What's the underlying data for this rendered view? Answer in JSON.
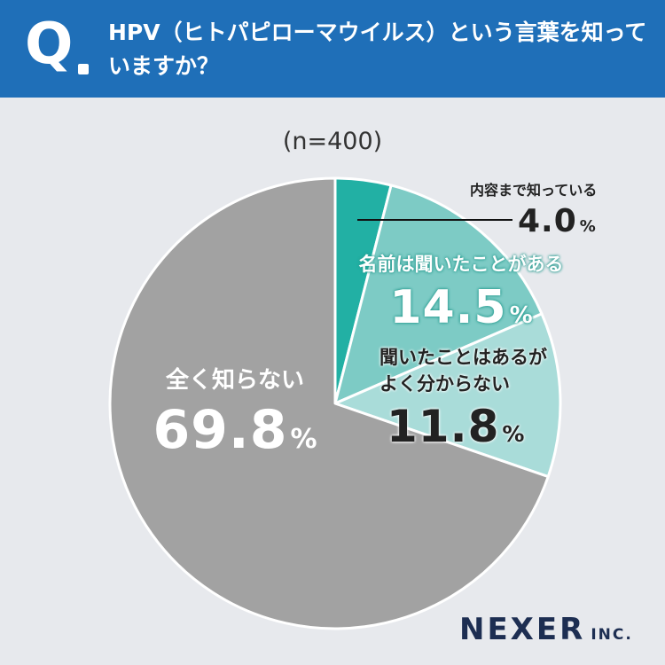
{
  "header": {
    "badge": "Q",
    "question": "HPV（ヒトパピローマウイルス）という言葉を知っていますか？"
  },
  "sample": "(n=400)",
  "brand": {
    "name": "NEXER",
    "suffix": "INC."
  },
  "colors": {
    "header_bg": "#1f6fb8",
    "page_bg": "#e7e9ed",
    "slice_know": "#22b0a4",
    "slice_heard": "#7dcbc5",
    "slice_vague": "#a9dcd9",
    "slice_unknown": "#a2a2a2",
    "brand": "#1d2e52"
  },
  "chart_data": {
    "type": "pie",
    "start": "12 o'clock",
    "direction": "clockwise",
    "unit": "%",
    "slices": [
      {
        "label": "内容まで知っている",
        "value": 4.0,
        "display": "4.0",
        "color": "#22b0a4"
      },
      {
        "label": "名前は聞いたことがある",
        "value": 14.5,
        "display": "14.5",
        "color": "#7dcbc5"
      },
      {
        "label": "聞いたことはあるがよく分からない",
        "label_lines": [
          "聞いたことはあるが",
          "よく分からない"
        ],
        "value": 11.8,
        "display": "11.8",
        "color": "#a9dcd9"
      },
      {
        "label": "全く知らない",
        "value": 69.8,
        "display": "69.8",
        "color": "#a2a2a2"
      }
    ]
  }
}
